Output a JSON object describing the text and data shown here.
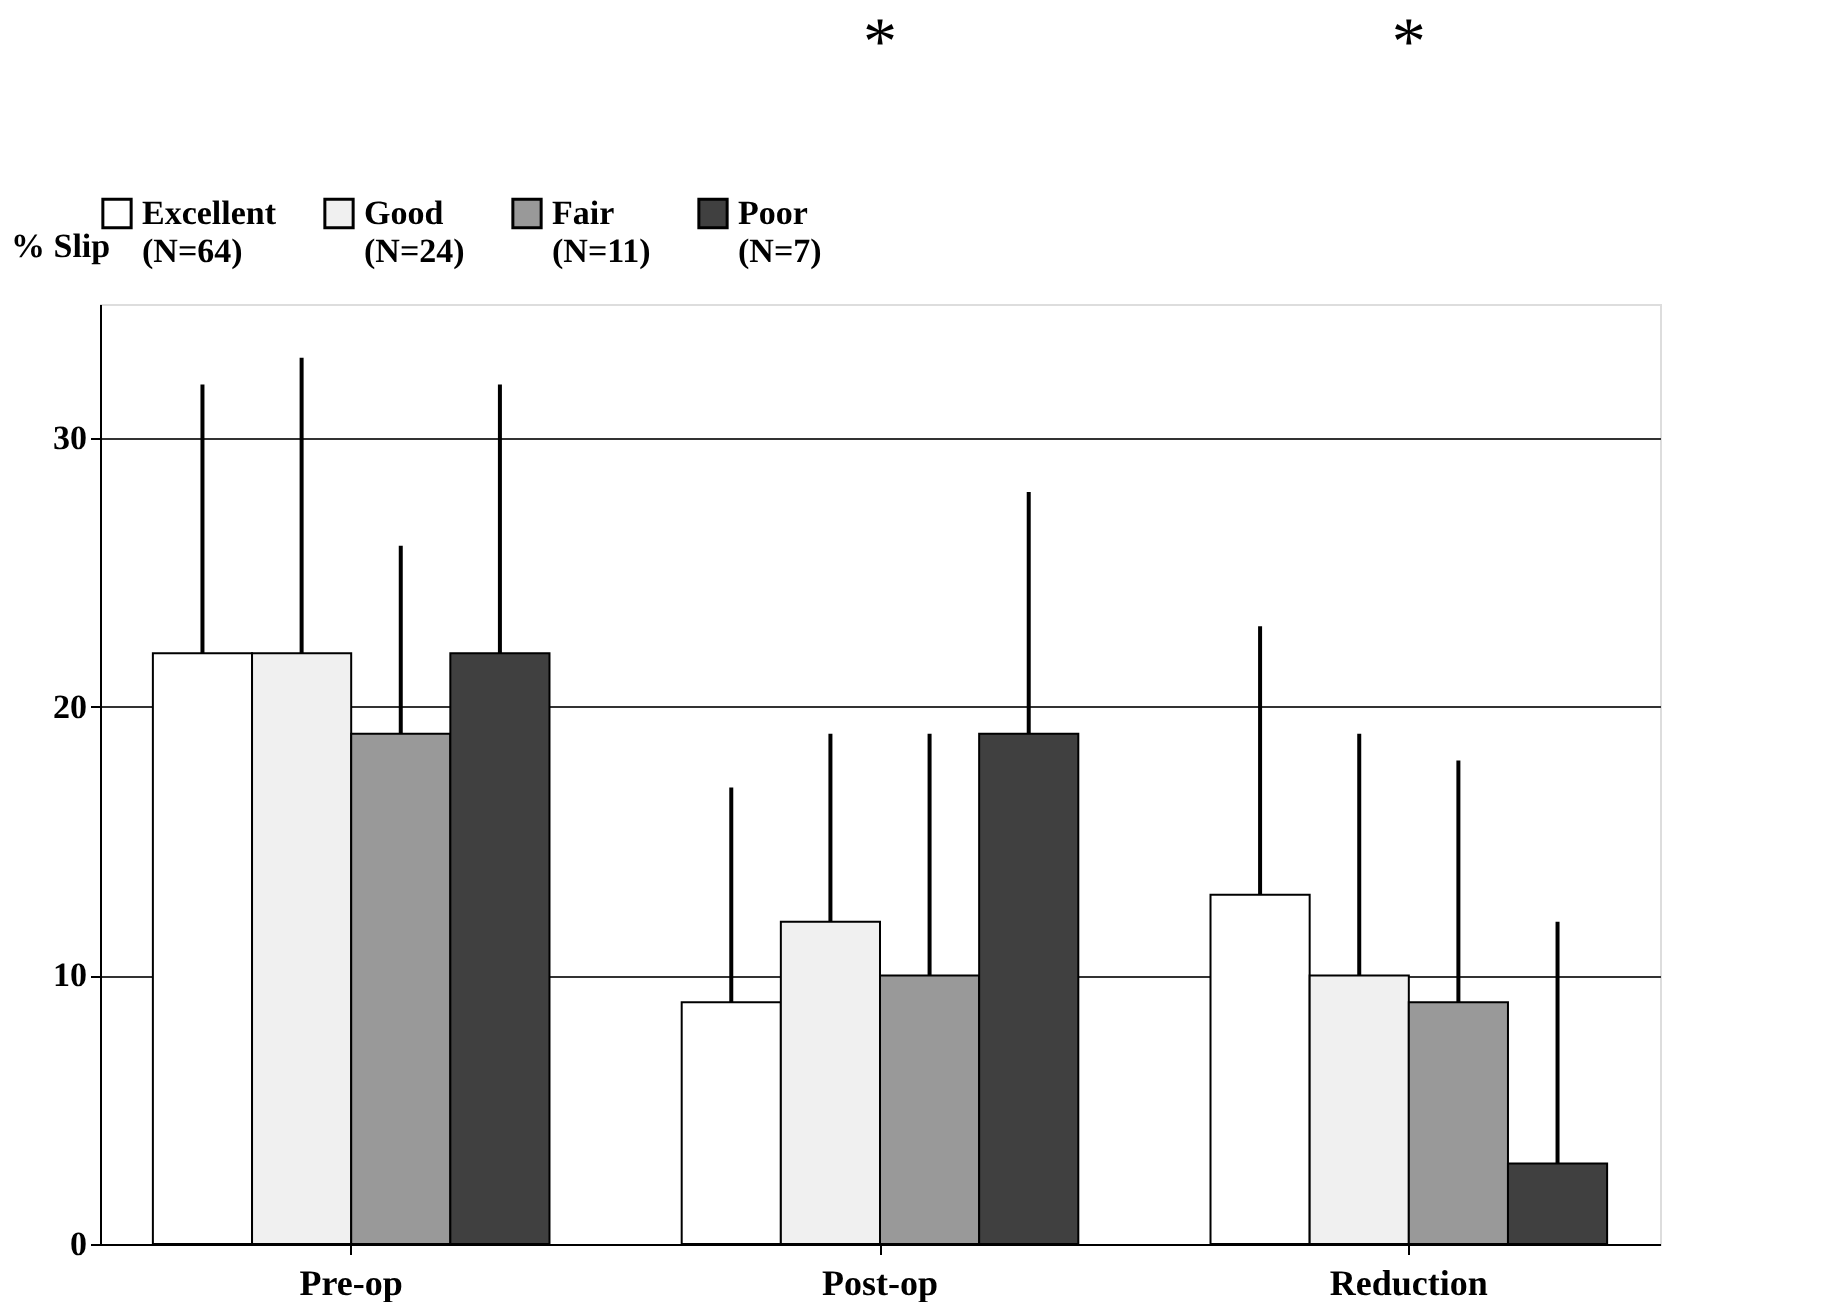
{
  "chart_data": {
    "type": "bar",
    "ylabel": "% Slip",
    "categories": [
      "Pre-op",
      "Post-op",
      "Reduction"
    ],
    "series": [
      {
        "name": "Excellent\n(N=64)",
        "color": "#ffffff",
        "values": [
          22,
          9,
          13
        ],
        "errors": [
          [
            22,
            32
          ],
          [
            9,
            17
          ],
          [
            13,
            23
          ]
        ]
      },
      {
        "name": "Good\n(N=24)",
        "color": "#f0f0f0",
        "values": [
          22,
          12,
          10
        ],
        "errors": [
          [
            22,
            33
          ],
          [
            12,
            19
          ],
          [
            10,
            19
          ]
        ]
      },
      {
        "name": "Fair\n(N=11)",
        "color": "#999999",
        "values": [
          19,
          10,
          9
        ],
        "errors": [
          [
            19,
            26
          ],
          [
            10,
            19
          ],
          [
            9,
            18
          ]
        ]
      },
      {
        "name": "Poor\n(N=7)",
        "color": "#404040",
        "values": [
          22,
          19,
          3
        ],
        "errors": [
          [
            22,
            32
          ],
          [
            19,
            28
          ],
          [
            3,
            12
          ]
        ]
      }
    ],
    "ylim": [
      0,
      35
    ],
    "yticks": [
      0,
      10,
      20,
      30
    ],
    "grid": "y",
    "legend": "top",
    "annotations": [
      "*",
      "*"
    ]
  }
}
